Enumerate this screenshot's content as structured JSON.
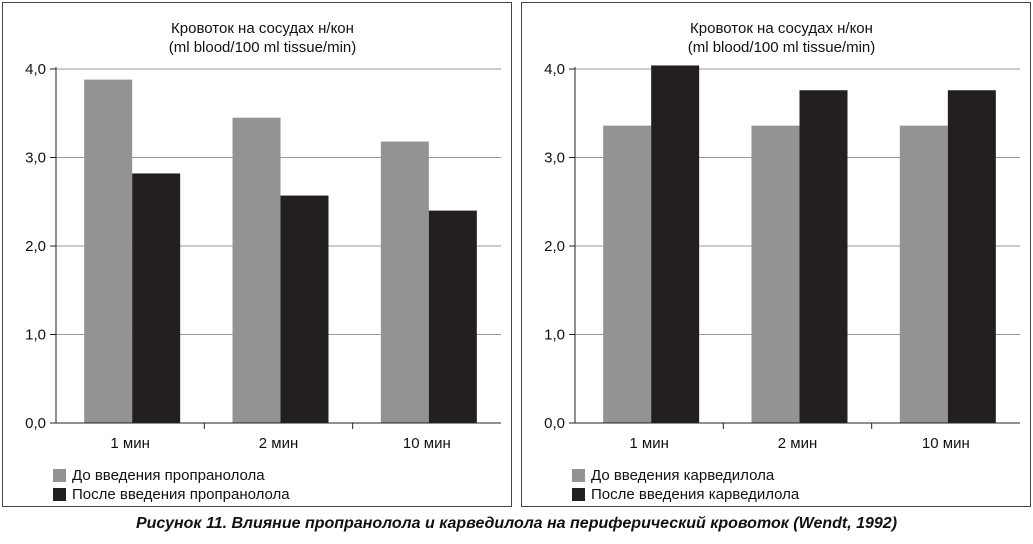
{
  "caption": "Рисунок 11.  Влияние пропранолола и карведилола на периферический кровоток (Wendt, 1992)",
  "colors": {
    "before": "#939393",
    "after": "#231f20",
    "grid": "#9a9a9a",
    "axis": "#222222"
  },
  "chart_data": [
    {
      "type": "bar",
      "title": "Кровоток на сосудах н/кон",
      "subtitle": "(ml blood/100 ml tissue/min)",
      "categories": [
        "1 мин",
        "2 мин",
        "10 мин"
      ],
      "yticks": [
        "0,0",
        "1,0",
        "2,0",
        "3,0",
        "4,0"
      ],
      "ylim": [
        0,
        4
      ],
      "grid": true,
      "legend": "bottom-left",
      "series": [
        {
          "name": "До введения пропранолола",
          "color": "#939393",
          "values": [
            3.88,
            3.45,
            3.18
          ]
        },
        {
          "name": "После введения пропранолола",
          "color": "#231f20",
          "values": [
            2.82,
            2.57,
            2.4
          ]
        }
      ]
    },
    {
      "type": "bar",
      "title": "Кровоток на сосудах н/кон",
      "subtitle": "(ml blood/100 ml tissue/min)",
      "categories": [
        "1 мин",
        "2 мин",
        "10 мин"
      ],
      "yticks": [
        "0,0",
        "1,0",
        "2,0",
        "3,0",
        "4,0"
      ],
      "ylim": [
        0,
        4
      ],
      "grid": true,
      "legend": "bottom-left",
      "series": [
        {
          "name": "До введения карведилола",
          "color": "#939393",
          "values": [
            3.36,
            3.36,
            3.36
          ]
        },
        {
          "name": "После введения карведилола",
          "color": "#231f20",
          "values": [
            4.04,
            3.76,
            3.76
          ]
        }
      ]
    }
  ]
}
